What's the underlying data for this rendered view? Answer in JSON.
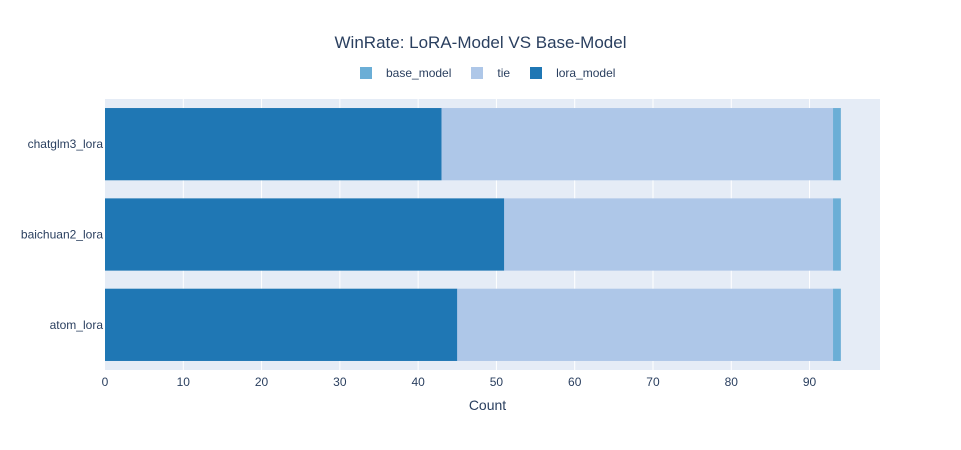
{
  "chart_data": {
    "type": "bar",
    "orientation": "horizontal",
    "barmode": "stack",
    "title": "WinRate: LoRA-Model VS Base-Model",
    "xlabel": "Count",
    "ylabel": "",
    "categories": [
      "atom_lora",
      "baichuan2_lora",
      "chatglm3_lora"
    ],
    "series": [
      {
        "name": "lora_model",
        "color": "#1f77b4",
        "values": [
          45,
          51,
          43
        ]
      },
      {
        "name": "tie",
        "color": "#aec7e8",
        "values": [
          48,
          42,
          50
        ]
      },
      {
        "name": "base_model",
        "color": "#6baed6",
        "values": [
          1,
          1,
          1
        ]
      }
    ],
    "legend_order": [
      "base_model",
      "tie",
      "lora_model"
    ],
    "xlim": [
      0,
      99
    ],
    "xticks": [
      0,
      10,
      20,
      30,
      40,
      50,
      60,
      70,
      80,
      90
    ],
    "xtick_labels": [
      "0",
      "10",
      "20",
      "30",
      "40",
      "50",
      "60",
      "70",
      "80",
      "90"
    ],
    "grid": true,
    "legend_position": "top-center",
    "plot_background": "#e5ecf6"
  }
}
